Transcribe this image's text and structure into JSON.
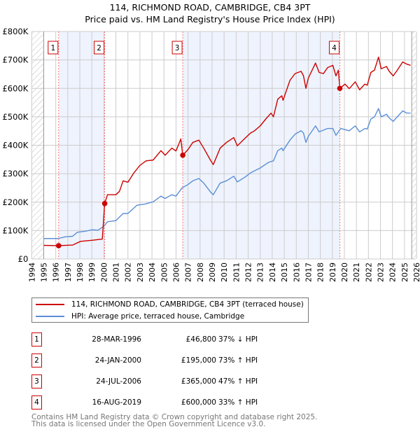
{
  "chart_data": {
    "type": "line",
    "title": "114, RICHMOND ROAD, CAMBRIDGE, CB4 3PT",
    "subtitle": "Price paid vs. HM Land Registry's House Price Index (HPI)",
    "xlabel": "",
    "ylabel": "",
    "xlim": [
      1994,
      2026
    ],
    "ylim": [
      0,
      800000
    ],
    "x_ticks": [
      "1994",
      "1995",
      "1996",
      "1997",
      "1998",
      "1999",
      "2000",
      "2001",
      "2002",
      "2003",
      "2004",
      "2005",
      "2006",
      "2007",
      "2008",
      "2009",
      "2010",
      "2011",
      "2012",
      "2013",
      "2014",
      "2015",
      "2016",
      "2017",
      "2018",
      "2019",
      "2020",
      "2021",
      "2022",
      "2023",
      "2024",
      "2025",
      "2026"
    ],
    "y_ticks": [
      {
        "v": 0,
        "label": "£0"
      },
      {
        "v": 100000,
        "label": "£100K"
      },
      {
        "v": 200000,
        "label": "£200K"
      },
      {
        "v": 300000,
        "label": "£300K"
      },
      {
        "v": 400000,
        "label": "£400K"
      },
      {
        "v": 500000,
        "label": "£500K"
      },
      {
        "v": 600000,
        "label": "£600K"
      },
      {
        "v": 700000,
        "label": "£700K"
      },
      {
        "v": 800000,
        "label": "£800K"
      }
    ],
    "grid": true,
    "colors": {
      "property": "#cc0000",
      "hpi": "#5b8fd6",
      "shade": "#eef3fd",
      "hatch": "#bbbbbb"
    },
    "series": [
      {
        "name": "114, RICHMOND ROAD, CAMBRIDGE, CB4 3PT (terraced house)",
        "points": [
          [
            1995,
            48
          ],
          [
            1996.24,
            46.8
          ],
          [
            1997.4,
            49
          ],
          [
            1998.06,
            62
          ],
          [
            1999.06,
            66
          ],
          [
            1999.85,
            70
          ],
          [
            1999.87,
            70
          ],
          [
            2000.07,
            195
          ],
          [
            2000.3,
            226
          ],
          [
            2001,
            226
          ],
          [
            2001.3,
            238
          ],
          [
            2001.6,
            275
          ],
          [
            2002,
            270
          ],
          [
            2002.5,
            303
          ],
          [
            2002.97,
            328
          ],
          [
            2003.5,
            345
          ],
          [
            2004.1,
            348
          ],
          [
            2004.75,
            381
          ],
          [
            2005.1,
            365
          ],
          [
            2005.65,
            390
          ],
          [
            2006,
            380
          ],
          [
            2006.4,
            422
          ],
          [
            2006.56,
            365
          ],
          [
            2007,
            385
          ],
          [
            2007.4,
            410
          ],
          [
            2007.9,
            418
          ],
          [
            2008.3,
            390
          ],
          [
            2008.9,
            345
          ],
          [
            2009.1,
            332
          ],
          [
            2009.67,
            390
          ],
          [
            2010.2,
            410
          ],
          [
            2010.8,
            427
          ],
          [
            2011.1,
            398
          ],
          [
            2011.7,
            423
          ],
          [
            2012.2,
            443
          ],
          [
            2012.5,
            450
          ],
          [
            2013,
            468
          ],
          [
            2013.46,
            492
          ],
          [
            2013.9,
            513
          ],
          [
            2014.1,
            500
          ],
          [
            2014.46,
            562
          ],
          [
            2014.8,
            574
          ],
          [
            2014.9,
            558
          ],
          [
            2015.47,
            628
          ],
          [
            2015.9,
            652
          ],
          [
            2016.4,
            660
          ],
          [
            2016.6,
            644
          ],
          [
            2016.8,
            600
          ],
          [
            2017,
            636
          ],
          [
            2017.6,
            689
          ],
          [
            2017.9,
            656
          ],
          [
            2018.26,
            652
          ],
          [
            2018.6,
            673
          ],
          [
            2019.04,
            681
          ],
          [
            2019.3,
            644
          ],
          [
            2019.5,
            664
          ],
          [
            2019.62,
            600
          ],
          [
            2020.05,
            615
          ],
          [
            2020.4,
            599
          ],
          [
            2020.9,
            623
          ],
          [
            2021.27,
            595
          ],
          [
            2021.7,
            615
          ],
          [
            2021.9,
            611
          ],
          [
            2022.2,
            656
          ],
          [
            2022.5,
            664
          ],
          [
            2022.84,
            710
          ],
          [
            2023.06,
            669
          ],
          [
            2023.5,
            677
          ],
          [
            2023.73,
            660
          ],
          [
            2024.06,
            644
          ],
          [
            2024.4,
            664
          ],
          [
            2024.85,
            693
          ],
          [
            2025.2,
            685
          ],
          [
            2025.5,
            681
          ]
        ]
      },
      {
        "name": "HPI: Average price, terraced house, Cambridge",
        "points": [
          [
            1995,
            72
          ],
          [
            1996.2,
            72
          ],
          [
            1996.8,
            78
          ],
          [
            1997.4,
            80
          ],
          [
            1997.8,
            94
          ],
          [
            1998.5,
            98
          ],
          [
            1999.06,
            103
          ],
          [
            1999.5,
            101
          ],
          [
            2000,
            115
          ],
          [
            2000.3,
            131
          ],
          [
            2001,
            135
          ],
          [
            2001.6,
            160
          ],
          [
            2002,
            160
          ],
          [
            2002.75,
            189
          ],
          [
            2003.4,
            193
          ],
          [
            2004.1,
            201
          ],
          [
            2004.75,
            221
          ],
          [
            2005.1,
            213
          ],
          [
            2005.65,
            226
          ],
          [
            2006,
            221
          ],
          [
            2006.5,
            250
          ],
          [
            2007,
            262
          ],
          [
            2007.4,
            275
          ],
          [
            2007.9,
            283
          ],
          [
            2008.3,
            267
          ],
          [
            2008.9,
            234
          ],
          [
            2009.1,
            226
          ],
          [
            2009.67,
            267
          ],
          [
            2010.2,
            275
          ],
          [
            2010.8,
            291
          ],
          [
            2011.1,
            271
          ],
          [
            2011.7,
            287
          ],
          [
            2012.2,
            303
          ],
          [
            2013,
            320
          ],
          [
            2013.7,
            340
          ],
          [
            2014.1,
            345
          ],
          [
            2014.46,
            381
          ],
          [
            2014.8,
            390
          ],
          [
            2014.9,
            381
          ],
          [
            2015.47,
            418
          ],
          [
            2015.9,
            439
          ],
          [
            2016.4,
            451
          ],
          [
            2016.6,
            443
          ],
          [
            2016.8,
            410
          ],
          [
            2017,
            431
          ],
          [
            2017.6,
            468
          ],
          [
            2017.9,
            447
          ],
          [
            2018.6,
            459
          ],
          [
            2019.04,
            459
          ],
          [
            2019.3,
            435
          ],
          [
            2019.7,
            459
          ],
          [
            2020.4,
            451
          ],
          [
            2020.9,
            468
          ],
          [
            2021.27,
            447
          ],
          [
            2021.7,
            459
          ],
          [
            2021.9,
            457
          ],
          [
            2022.2,
            492
          ],
          [
            2022.5,
            500
          ],
          [
            2022.84,
            529
          ],
          [
            2023.06,
            500
          ],
          [
            2023.5,
            509
          ],
          [
            2023.73,
            496
          ],
          [
            2024.06,
            484
          ],
          [
            2024.4,
            500
          ],
          [
            2024.85,
            521
          ],
          [
            2025.2,
            513
          ],
          [
            2025.5,
            513
          ]
        ]
      }
    ],
    "value_unit": "thousands GBP",
    "sales": [
      {
        "n": "1",
        "x": 1996.24,
        "y": 46.8
      },
      {
        "n": "2",
        "x": 2000.07,
        "y": 195
      },
      {
        "n": "3",
        "x": 2006.56,
        "y": 365
      },
      {
        "n": "4",
        "x": 2019.62,
        "y": 600
      }
    ],
    "shaded_ranges": [
      [
        1996.24,
        2000.07
      ],
      [
        2006.56,
        2019.62
      ]
    ],
    "hatched_ranges": [
      [
        1994,
        1995
      ],
      [
        2025.6,
        2026
      ]
    ],
    "legend_position": "below"
  },
  "legend": {
    "property": "114, RICHMOND ROAD, CAMBRIDGE, CB4 3PT (terraced house)",
    "hpi": "HPI: Average price, terraced house, Cambridge"
  },
  "transactions": [
    {
      "n": "1",
      "date": "28-MAR-1996",
      "price": "£46,800",
      "hpi": "37% ↓ HPI"
    },
    {
      "n": "2",
      "date": "24-JAN-2000",
      "price": "£195,000",
      "hpi": "73% ↑ HPI"
    },
    {
      "n": "3",
      "date": "24-JUL-2006",
      "price": "£365,000",
      "hpi": "47% ↑ HPI"
    },
    {
      "n": "4",
      "date": "16-AUG-2019",
      "price": "£600,000",
      "hpi": "33% ↑ HPI"
    }
  ],
  "footer": {
    "line1": "Contains HM Land Registry data © Crown copyright and database right 2025.",
    "line2": "This data is licensed under the Open Government Licence v3.0."
  }
}
